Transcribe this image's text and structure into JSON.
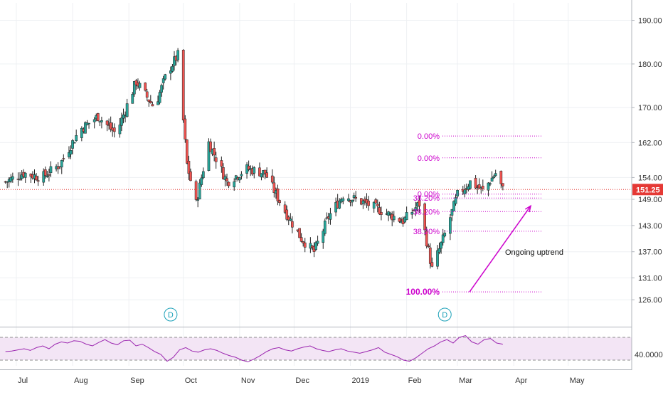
{
  "chart_data": [
    {
      "type": "candlestick",
      "ylim": [
        120,
        194
      ],
      "price_ticks": [
        "190.00",
        "180.00",
        "170.00",
        "162.00",
        "154.00",
        "149.00",
        "143.00",
        "137.00",
        "131.00",
        "126.00"
      ],
      "price_tick_values": [
        190,
        180,
        170,
        162,
        154,
        149,
        143,
        137,
        131,
        126
      ],
      "last_price": "151.25",
      "last_price_value": 151.25,
      "x_labels": [
        "Jul",
        "Aug",
        "Sep",
        "Oct",
        "Nov",
        "Dec",
        "2019",
        "Feb",
        "Mar",
        "Apr",
        "May"
      ],
      "x_label_dates": [
        "2018-07-01",
        "2018-08-01",
        "2018-09-01",
        "2018-10-01",
        "2018-11-01",
        "2018-12-01",
        "2019-01-01",
        "2019-02-01",
        "2019-03-01",
        "2019-04-01",
        "2019-05-01"
      ],
      "grid": true,
      "colors": {
        "up": "#26a69a",
        "down": "#ef5350",
        "fib": "#cc00cc",
        "last_price": "#e53935",
        "arrow": "#cc00cc",
        "rsi": "#9c27b0",
        "rsi_band": "#f3e5f5",
        "badge": "#1aa0b8"
      },
      "price_path": [
        {
          "date": "2018-06-25",
          "price": 153
        },
        {
          "date": "2018-07-05",
          "price": 155
        },
        {
          "date": "2018-07-15",
          "price": 154
        },
        {
          "date": "2018-07-25",
          "price": 157
        },
        {
          "date": "2018-08-05",
          "price": 165
        },
        {
          "date": "2018-08-15",
          "price": 168
        },
        {
          "date": "2018-08-25",
          "price": 164
        },
        {
          "date": "2018-09-05",
          "price": 176
        },
        {
          "date": "2018-09-15",
          "price": 170
        },
        {
          "date": "2018-09-22",
          "price": 178
        },
        {
          "date": "2018-09-28",
          "price": 182
        },
        {
          "date": "2018-10-03",
          "price": 157
        },
        {
          "date": "2018-10-08",
          "price": 148
        },
        {
          "date": "2018-10-15",
          "price": 162
        },
        {
          "date": "2018-10-25",
          "price": 153
        },
        {
          "date": "2018-11-05",
          "price": 156
        },
        {
          "date": "2018-11-15",
          "price": 155
        },
        {
          "date": "2018-11-25",
          "price": 147
        },
        {
          "date": "2018-12-05",
          "price": 140
        },
        {
          "date": "2018-12-12",
          "price": 137
        },
        {
          "date": "2018-12-20",
          "price": 145
        },
        {
          "date": "2018-12-28",
          "price": 150
        },
        {
          "date": "2019-01-10",
          "price": 148
        },
        {
          "date": "2019-01-20",
          "price": 146
        },
        {
          "date": "2019-01-30",
          "price": 144
        },
        {
          "date": "2019-02-08",
          "price": 148
        },
        {
          "date": "2019-02-15",
          "price": 133
        },
        {
          "date": "2019-02-22",
          "price": 141
        },
        {
          "date": "2019-03-01",
          "price": 150
        },
        {
          "date": "2019-03-08",
          "price": 153
        },
        {
          "date": "2019-03-15",
          "price": 151
        },
        {
          "date": "2019-03-22",
          "price": 155
        },
        {
          "date": "2019-03-26",
          "price": 151.25
        }
      ],
      "fib_levels": [
        {
          "label": "0.00%",
          "price": 163.5
        },
        {
          "label": "0.00%",
          "price": 158.5
        },
        {
          "label": "0.00%",
          "price": 150.2
        },
        {
          "label": "38.20%",
          "price": 149.3
        },
        {
          "label": "38.20%",
          "price": 146.2
        },
        {
          "label": "38.20%",
          "price": 141.7
        },
        {
          "label": "100.00%",
          "price": 127.8
        }
      ],
      "annotation": "Ongoing uptrend",
      "event_badges": [
        {
          "label": "D",
          "date": "2018-09-24"
        },
        {
          "label": "D",
          "date": "2019-02-22"
        }
      ]
    },
    {
      "type": "line",
      "indicator": "RSI",
      "y_tick": "40.0000",
      "ylim": [
        20,
        85
      ],
      "band": [
        30,
        70
      ],
      "values": [
        45,
        46,
        48,
        50,
        47,
        52,
        55,
        50,
        58,
        62,
        60,
        64,
        63,
        58,
        55,
        61,
        66,
        60,
        57,
        64,
        65,
        55,
        58,
        52,
        45,
        40,
        28,
        35,
        48,
        52,
        46,
        44,
        48,
        50,
        47,
        42,
        38,
        35,
        30,
        27,
        32,
        38,
        45,
        50,
        52,
        48,
        46,
        50,
        53,
        55,
        50,
        47,
        45,
        48,
        50,
        46,
        44,
        42,
        45,
        48,
        52,
        44,
        40,
        36,
        30,
        28,
        34,
        42,
        50,
        55,
        62,
        66,
        60,
        70,
        73,
        62,
        58,
        66,
        68,
        60,
        58
      ]
    }
  ]
}
